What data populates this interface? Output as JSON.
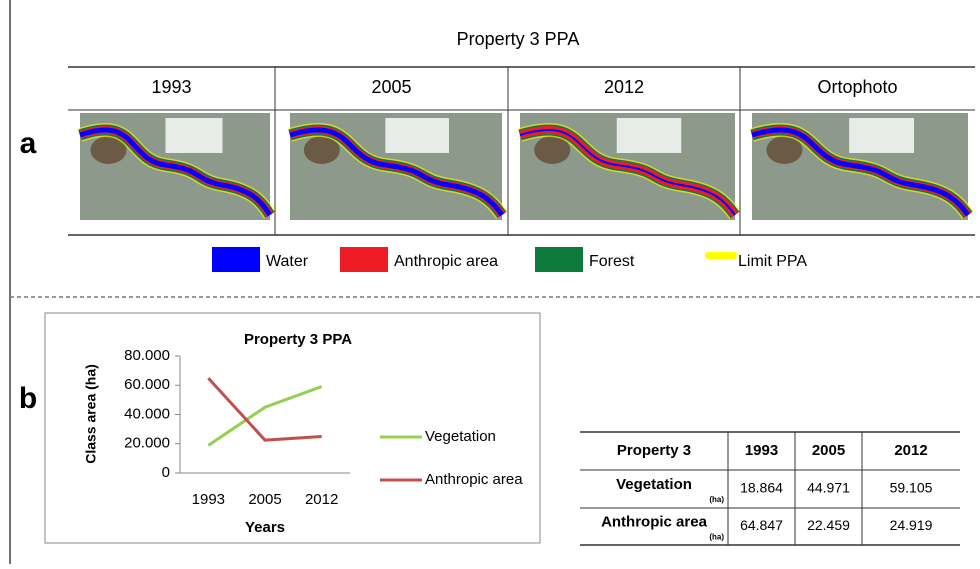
{
  "panel_a": {
    "label": "a",
    "title": "Property 3 PPA",
    "columns": [
      "1993",
      "2005",
      "2012",
      "Ortophoto"
    ],
    "legend": [
      {
        "name": "Water",
        "color": "#0000ff"
      },
      {
        "name": "Anthropic area",
        "color": "#ee1c24"
      },
      {
        "name": "Forest",
        "color": "#0e7a3c"
      },
      {
        "name": "Limit PPA",
        "color": "#ffff00"
      }
    ]
  },
  "panel_b": {
    "label": "b"
  },
  "chart_data": {
    "type": "line",
    "title": "Property 3 PPA",
    "ylabel": "Class area (ha)",
    "xlabel": "Years",
    "categories": [
      "1993",
      "2005",
      "2012"
    ],
    "ylim": [
      0,
      80
    ],
    "yticks": [
      0,
      {
        "value": 20,
        "label": "20.000"
      },
      {
        "value": 40,
        "label": "40.000"
      },
      {
        "value": 60,
        "label": "60.000"
      },
      {
        "value": 80,
        "label": "80.000"
      }
    ],
    "series": [
      {
        "name": "Vegetation",
        "color": "#92d050",
        "values": [
          18.864,
          44.971,
          59.105
        ]
      },
      {
        "name": "Anthropic area",
        "color": "#c0504d",
        "values": [
          64.847,
          22.459,
          24.919
        ]
      }
    ]
  },
  "table": {
    "header": [
      "Property 3",
      "1993",
      "2005",
      "2012"
    ],
    "unit": "(ha)",
    "rows": [
      [
        "Vegetation",
        "18.864",
        "44.971",
        "59.105"
      ],
      [
        "Anthropic area",
        "64.847",
        "22.459",
        "24.919"
      ]
    ]
  }
}
